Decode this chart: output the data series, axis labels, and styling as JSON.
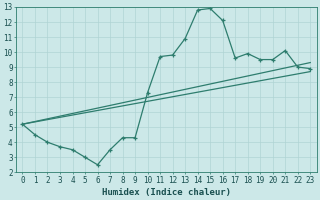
{
  "xlabel": "Humidex (Indice chaleur)",
  "bg_color": "#cce8e8",
  "grid_color": "#b0d4d4",
  "line_color": "#2e7d6e",
  "xlim": [
    -0.5,
    23.5
  ],
  "ylim": [
    2,
    13
  ],
  "xticks": [
    0,
    1,
    2,
    3,
    4,
    5,
    6,
    7,
    8,
    9,
    10,
    11,
    12,
    13,
    14,
    15,
    16,
    17,
    18,
    19,
    20,
    21,
    22,
    23
  ],
  "yticks": [
    2,
    3,
    4,
    5,
    6,
    7,
    8,
    9,
    10,
    11,
    12,
    13
  ],
  "series1_x": [
    0,
    1,
    2,
    3,
    4,
    5,
    6,
    7,
    8,
    9,
    10,
    11,
    12,
    13,
    14,
    15,
    16,
    17,
    18,
    19,
    20,
    21,
    22,
    23
  ],
  "series1_y": [
    5.2,
    4.5,
    4.0,
    3.7,
    3.5,
    3.0,
    2.5,
    3.5,
    4.3,
    4.3,
    7.3,
    9.7,
    9.8,
    10.9,
    12.8,
    12.9,
    12.1,
    9.6,
    9.9,
    9.5,
    9.5,
    10.1,
    9.0,
    8.9
  ],
  "series2_x": [
    0,
    23
  ],
  "series2_y": [
    5.2,
    9.3
  ],
  "series3_x": [
    0,
    23
  ],
  "series3_y": [
    5.2,
    8.7
  ]
}
